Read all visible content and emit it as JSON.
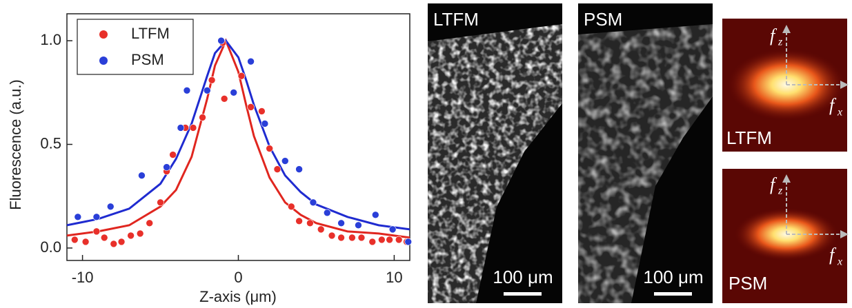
{
  "chart_data": {
    "type": "scatter",
    "xlabel": "Z-axis (μm)",
    "ylabel": "Fluorescence (a.u.)",
    "xlim": [
      -11,
      11
    ],
    "ylim": [
      -0.06,
      1.13
    ],
    "xticks": [
      -10,
      0,
      10
    ],
    "yticks": [
      {
        "value": 0,
        "label": "0.0"
      },
      {
        "value": 0.5,
        "label": "0.5"
      },
      {
        "value": 1,
        "label": "1.0"
      }
    ],
    "legend": "upper left",
    "series": [
      {
        "name": "LTFM",
        "color": "#e8302a",
        "type": "scatter",
        "x": [
          -10.5,
          -9.8,
          -9.1,
          -8.6,
          -8.0,
          -7.5,
          -6.9,
          -6.3,
          -5.7,
          -5.0,
          -4.6,
          -4.2,
          -3.4,
          -2.9,
          -2.3,
          -1.7,
          -1.0,
          -0.9,
          0.2,
          0.8,
          1.5,
          2.0,
          2.5,
          3.4,
          3.9,
          4.6,
          5.3,
          6.0,
          6.6,
          7.3,
          7.9,
          8.6,
          9.2,
          9.7,
          10.3,
          10.8
        ],
        "values": [
          0.04,
          0.03,
          0.08,
          0.05,
          0.02,
          0.03,
          0.06,
          0.07,
          0.12,
          0.22,
          0.37,
          0.45,
          0.58,
          0.58,
          0.63,
          0.81,
          0.99,
          0.72,
          0.83,
          0.68,
          0.66,
          0.48,
          0.38,
          0.2,
          0.13,
          0.12,
          0.09,
          0.06,
          0.05,
          0.05,
          0.05,
          0.03,
          0.04,
          0.04,
          0.04,
          0.03
        ]
      },
      {
        "name": "PSM",
        "color": "#2a3fd8",
        "type": "scatter",
        "x": [
          -10.3,
          -9.1,
          -8.2,
          -6.2,
          -4.6,
          -3.7,
          -3.3,
          -2.0,
          -1.1,
          -0.3,
          0.8,
          1.7,
          3.0,
          3.9,
          4.8,
          5.7,
          6.6,
          7.7,
          8.8,
          9.9,
          10.9
        ],
        "values": [
          0.15,
          0.15,
          0.2,
          0.35,
          0.39,
          0.58,
          0.76,
          0.76,
          1.0,
          0.75,
          0.9,
          0.6,
          0.42,
          0.38,
          0.22,
          0.17,
          0.12,
          0.11,
          0.16,
          0.09,
          0.03
        ]
      },
      {
        "color": "#e0261f",
        "type": "line",
        "x": [
          -11,
          -9,
          -7,
          -5,
          -4,
          -3,
          -2,
          -1.5,
          -0.8,
          0,
          0.5,
          1,
          2,
          3,
          4,
          5,
          7,
          9,
          11
        ],
        "values": [
          0.06,
          0.08,
          0.11,
          0.2,
          0.28,
          0.44,
          0.72,
          0.88,
          1.0,
          0.85,
          0.69,
          0.54,
          0.34,
          0.22,
          0.16,
          0.12,
          0.08,
          0.07,
          0.05
        ]
      },
      {
        "color": "#1f2bd0",
        "type": "line",
        "x": [
          -11,
          -9,
          -7,
          -5,
          -4,
          -3,
          -2,
          -1.5,
          -0.8,
          0,
          0.5,
          1,
          2,
          3,
          4,
          5,
          7,
          9,
          11
        ],
        "values": [
          0.11,
          0.14,
          0.19,
          0.31,
          0.43,
          0.6,
          0.83,
          0.94,
          1.0,
          0.92,
          0.81,
          0.69,
          0.49,
          0.35,
          0.27,
          0.21,
          0.15,
          0.11,
          0.09
        ]
      }
    ]
  },
  "panels": [
    {
      "label": "LTFM",
      "scale_bar": "100 μm"
    },
    {
      "label": "PSM",
      "scale_bar": "100 μm"
    }
  ],
  "spectra": [
    {
      "label": "LTFM",
      "fz": "f",
      "fz_sub": "z",
      "fx": "f",
      "fx_sub": "x"
    },
    {
      "label": "PSM",
      "fz": "f",
      "fz_sub": "z",
      "fx": "f",
      "fx_sub": "x"
    }
  ]
}
